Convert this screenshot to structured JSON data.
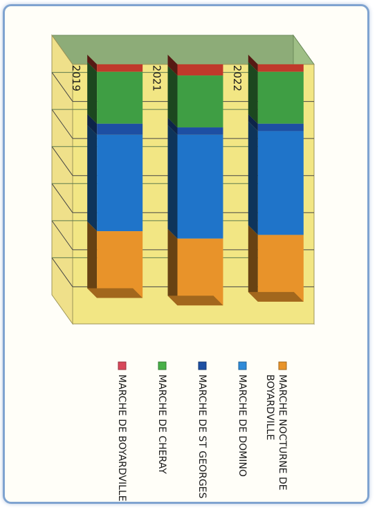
{
  "chart_data": {
    "type": "bar",
    "orientation": "horizontal-stacked-3d",
    "categories": [
      "2019",
      "2021",
      "2022"
    ],
    "series": [
      {
        "name": "MARCHE DE BOYARDVILLE",
        "values": [
          2,
          3,
          2
        ],
        "color": "#c0392b"
      },
      {
        "name": "MARCHE DE CHERAY",
        "values": [
          14,
          14,
          14
        ],
        "color": "#3f9e44"
      },
      {
        "name": "MARCHE DE ST GEORGES",
        "values": [
          3,
          2,
          2
        ],
        "color": "#1d4fa3"
      },
      {
        "name": "MARCHE DE DOMINO",
        "values": [
          26,
          28,
          28
        ],
        "color": "#1f74c9"
      },
      {
        "name": "MARCHE NOCTURNE DE BOYARDVILLE",
        "values": [
          18,
          18,
          18
        ],
        "color": "#e8932a"
      }
    ],
    "xlim": [
      0,
      70
    ],
    "grid": true,
    "legend_position": "right"
  },
  "legend": {
    "items": [
      {
        "lines": [
          "MARCHE NOCTURNE DE",
          "BOYARDVILLE"
        ],
        "color": "#e8932a"
      },
      {
        "lines": [
          "MARCHE DE DOMINO"
        ],
        "color": "#2e8ad8"
      },
      {
        "lines": [
          "MARCHE DE ST GEORGES"
        ],
        "color": "#1d4fa3"
      },
      {
        "lines": [
          "MARCHE DE CHERAY"
        ],
        "color": "#48b048"
      },
      {
        "lines": [
          "MARCHE DE BOYARDVILLE"
        ],
        "color": "#d8475a"
      }
    ]
  }
}
